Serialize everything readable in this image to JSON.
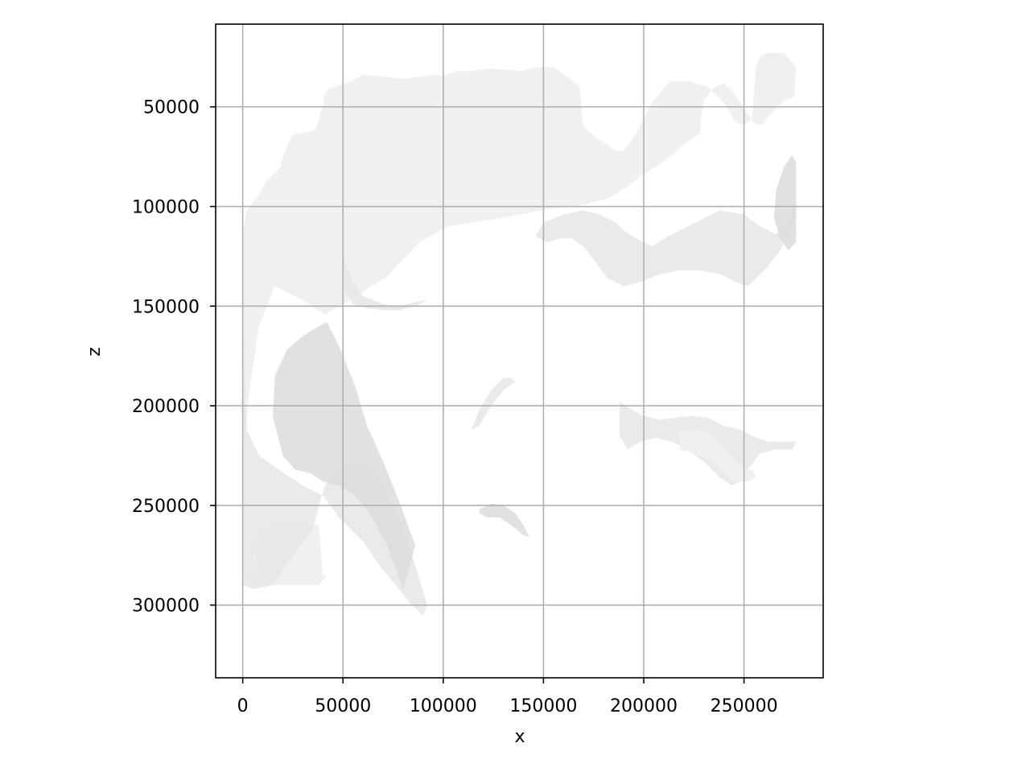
{
  "chart_data": {
    "type": "area",
    "title": "",
    "xlabel": "x",
    "ylabel": "z",
    "xlim": [
      -13500,
      289500
    ],
    "ylim": [
      336500,
      8500
    ],
    "y_inverted": true,
    "grid": true,
    "legend": "none",
    "x_ticks": [
      0,
      50000,
      100000,
      150000,
      200000,
      250000
    ],
    "x_tick_labels": [
      "0",
      "50000",
      "100000",
      "150000",
      "200000",
      "250000"
    ],
    "y_ticks": [
      50000,
      100000,
      150000,
      200000,
      250000,
      300000
    ],
    "y_tick_labels": [
      "50000",
      "100000",
      "150000",
      "200000",
      "250000",
      "300000"
    ],
    "colors": {
      "surface_light": "#f0f0f0",
      "surface_mid": "#e6e6e6",
      "surface_dark": "#dcdcdc",
      "grid": "#b0b0b0",
      "axes": "#000000"
    },
    "regions": [
      {
        "name": "main-body",
        "shade": "light",
        "x": [
          0,
          0,
          3000,
          8000,
          16000,
          30000,
          38000,
          41000,
          52000,
          72000,
          88000,
          102000,
          128000,
          148000,
          170000,
          182000,
          192000,
          198000,
          206000,
          213000,
          220000,
          228000,
          229000,
          230000,
          234000,
          240000,
          245000,
          255000,
          259000,
          262000,
          270000,
          275000,
          276000,
          276000,
          270000,
          261000,
          258000,
          256000,
          254000,
          250000,
          246000,
          240000,
          232000,
          222000,
          213000,
          204000,
          196000,
          190000,
          186000,
          183000,
          177000,
          170000,
          169500,
          168000,
          161000,
          155000,
          148000,
          143000,
          139000,
          127000,
          121000,
          114000,
          107000,
          104000,
          101000,
          99000,
          94000,
          88000,
          86000,
          82000,
          72000,
          60000,
          52000,
          43000,
          41000,
          40000,
          37000,
          35000,
          25000,
          23000,
          20000,
          19000,
          12000,
          8000,
          2000,
          0,
          0,
          3000,
          8000,
          30000,
          40000,
          38000,
          25000,
          10000,
          6000,
          8000,
          15000,
          30000,
          38000,
          42000
        ],
        "z": [
          285000,
          230000,
          195000,
          160000,
          140000,
          147000,
          152000,
          154000,
          148000,
          135000,
          118000,
          110000,
          106000,
          102000,
          99000,
          96000,
          90000,
          85000,
          80000,
          75000,
          69000,
          63000,
          53000,
          47000,
          41000,
          38000,
          43000,
          58000,
          59000,
          55000,
          47000,
          45000,
          30000,
          30000,
          23000,
          23000,
          25000,
          29000,
          56000,
          59000,
          58000,
          48000,
          40000,
          37000,
          37000,
          48000,
          64000,
          72000,
          72000,
          70000,
          66000,
          60000,
          57000,
          40000,
          34000,
          30000,
          30000,
          31000,
          32000,
          31000,
          31000,
          32000,
          32000,
          33000,
          34000,
          34500,
          34000,
          35000,
          35000,
          36000,
          35000,
          34000,
          38000,
          41000,
          43000,
          49000,
          60000,
          62000,
          64000,
          68000,
          75000,
          80000,
          87000,
          94000,
          102000,
          113000,
          285000,
          288000,
          290000,
          290000,
          287000,
          260000,
          258000,
          262000,
          270000,
          285000,
          288000,
          290000,
          290000,
          285000
        ]
      },
      {
        "name": "lower-left-lobe",
        "shade": "mid",
        "x": [
          0,
          0,
          5000,
          15000,
          25000,
          35000,
          38000,
          41000,
          50000,
          60000,
          70000,
          80000,
          86000,
          92000,
          90000,
          84000,
          78000,
          68000,
          60000,
          48000,
          40000,
          30000,
          18000,
          8000,
          2000
        ],
        "z": [
          160000,
          290000,
          292000,
          290000,
          275000,
          262000,
          250000,
          240000,
          230000,
          228000,
          240000,
          262000,
          280000,
          300000,
          305000,
          300000,
          292000,
          280000,
          268000,
          256000,
          245000,
          240000,
          232000,
          225000,
          212000
        ]
      },
      {
        "name": "left-shadow-band",
        "shade": "dark",
        "x": [
          16000,
          22000,
          30000,
          38000,
          42000,
          48000,
          56000,
          62000,
          70000,
          78000,
          86000,
          80000,
          72000,
          64000,
          56000,
          48000,
          40000,
          34000,
          26000,
          20000,
          15000
        ],
        "z": [
          185000,
          172000,
          165000,
          160000,
          158000,
          170000,
          190000,
          210000,
          228000,
          248000,
          270000,
          292000,
          270000,
          255000,
          245000,
          240000,
          238000,
          234000,
          232000,
          225000,
          205000
        ]
      },
      {
        "name": "center-left-shadow",
        "shade": "mid",
        "x": [
          50000,
          55000,
          60000,
          70000,
          78000,
          82000,
          86000,
          92000,
          96000,
          92000,
          86000,
          78000,
          70000,
          62000,
          55000,
          50000
        ],
        "z": [
          125000,
          138000,
          145000,
          149000,
          150000,
          149000,
          148000,
          147000,
          146000,
          147000,
          150000,
          152000,
          152000,
          151000,
          149000,
          140000
        ]
      },
      {
        "name": "upper-right-shadow",
        "shade": "mid",
        "x": [
          146000,
          150000,
          160000,
          170000,
          178000,
          186000,
          190000,
          196000,
          204000,
          214000,
          226000,
          238000,
          250000,
          258000,
          266000,
          272000,
          276000,
          274000,
          268000,
          262000,
          256000,
          252000,
          246000,
          238000,
          228000,
          218000,
          208000,
          198000,
          190000,
          182000,
          176000,
          170000,
          164000,
          158000,
          152000
        ],
        "z": [
          115000,
          108000,
          104000,
          102000,
          104000,
          108000,
          112000,
          116000,
          120000,
          114000,
          108000,
          102000,
          104000,
          110000,
          114000,
          108000,
          100000,
          112000,
          122000,
          130000,
          136000,
          140000,
          138000,
          134000,
          132000,
          132000,
          134000,
          138000,
          140000,
          136000,
          128000,
          120000,
          116000,
          116000,
          118000
        ]
      },
      {
        "name": "right-lower-shadow",
        "shade": "mid",
        "x": [
          188000,
          194000,
          200000,
          208000,
          216000,
          224000,
          232000,
          240000,
          248000,
          256000,
          262000,
          270000,
          276000,
          274000,
          266000,
          258000,
          252000,
          248000,
          244000,
          238000,
          230000,
          222000,
          214000,
          206000,
          198000,
          192000,
          188000
        ],
        "z": [
          198000,
          202000,
          205000,
          207000,
          206000,
          205000,
          206000,
          210000,
          212000,
          216000,
          218000,
          218000,
          218000,
          222000,
          222000,
          224000,
          232000,
          238000,
          240000,
          236000,
          228000,
          222000,
          218000,
          216000,
          218000,
          222000,
          215000
        ]
      },
      {
        "name": "lower-center-dark-fold",
        "shade": "dark",
        "x": [
          118000,
          124000,
          130000,
          136000,
          140000,
          143000,
          140000,
          134000,
          128000,
          122000,
          118000
        ],
        "z": [
          252000,
          249000,
          250000,
          254000,
          260000,
          266000,
          265000,
          260000,
          256000,
          256000,
          254000
        ]
      },
      {
        "name": "center-crescent",
        "shade": "mid",
        "x": [
          114000,
          118000,
          124000,
          130000,
          134000,
          136000,
          130000,
          124000,
          118000
        ],
        "z": [
          212000,
          202000,
          192000,
          186000,
          186000,
          188000,
          192000,
          200000,
          210000
        ]
      },
      {
        "name": "right-edge-strip",
        "shade": "dark",
        "x": [
          266000,
          270000,
          274000,
          276000,
          276000,
          272000,
          268000,
          265000
        ],
        "z": [
          92000,
          80000,
          74000,
          78000,
          118000,
          122000,
          116000,
          106000
        ]
      },
      {
        "name": "lower-right-tab",
        "shade": "light",
        "x": [
          218000,
          226000,
          234000,
          240000,
          246000,
          250000,
          254000,
          256000,
          252000,
          246000,
          240000,
          234000,
          226000,
          218000
        ],
        "z": [
          214000,
          212000,
          214000,
          222000,
          228000,
          232000,
          232000,
          236000,
          238000,
          238000,
          234000,
          228000,
          224000,
          222000
        ]
      }
    ]
  }
}
